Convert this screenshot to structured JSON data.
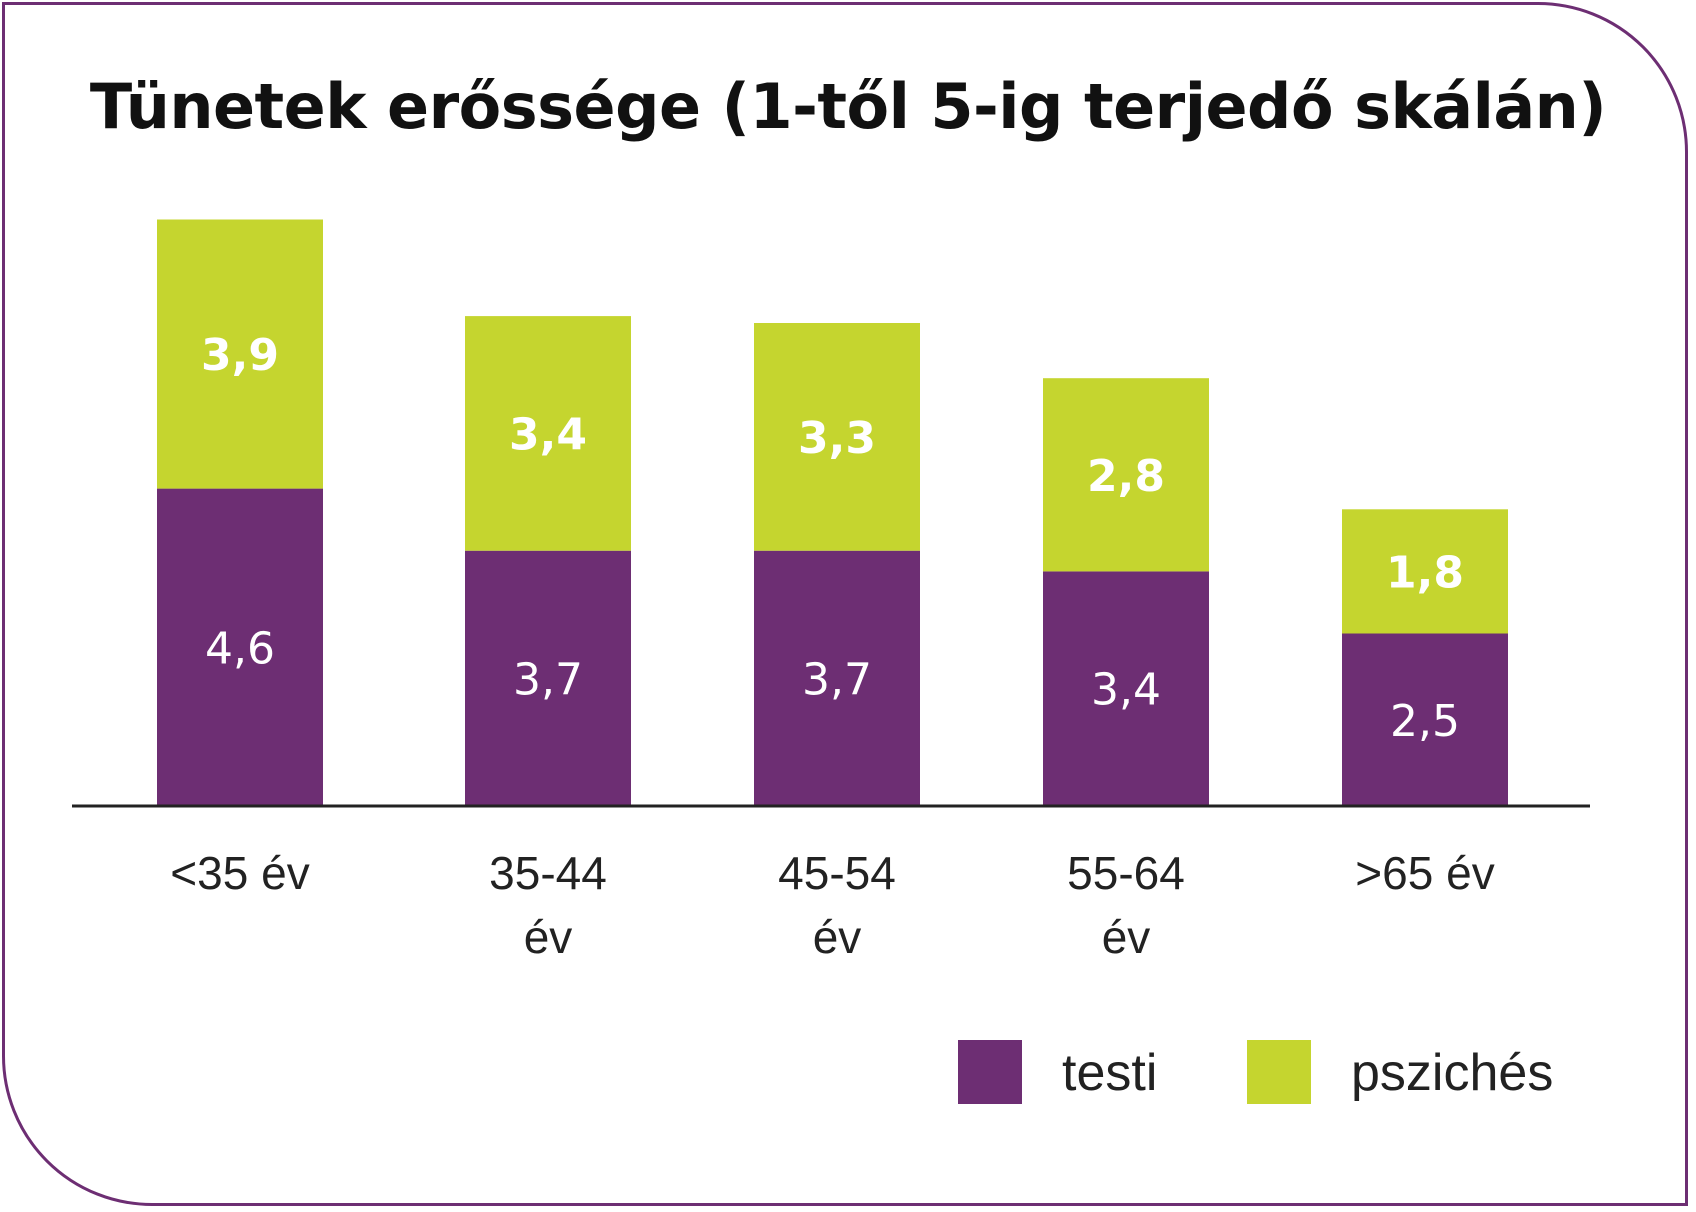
{
  "chart_data": {
    "type": "bar",
    "stacked": true,
    "title": "Tünetek erőssége (1-től 5-ig terjedő skálán)",
    "categories": [
      [
        "<35 év"
      ],
      [
        "35-44",
        "év"
      ],
      [
        "45-54",
        "év"
      ],
      [
        "55-64",
        "év"
      ],
      [
        ">65 év"
      ]
    ],
    "series": [
      {
        "name": "testi",
        "color": "#6d2e73",
        "values": [
          4.6,
          3.7,
          3.7,
          3.4,
          2.5
        ],
        "labels": [
          "4,6",
          "3,7",
          "3,7",
          "3,4",
          "2,5"
        ]
      },
      {
        "name": "pszichés",
        "color": "#c5d52f",
        "values": [
          3.9,
          3.4,
          3.3,
          2.8,
          1.8
        ],
        "labels": [
          "3,9",
          "3,4",
          "3,3",
          "2,8",
          "1,8"
        ]
      }
    ],
    "xlabel": "",
    "ylabel": "",
    "legend": "bottom-right",
    "grid": false
  }
}
